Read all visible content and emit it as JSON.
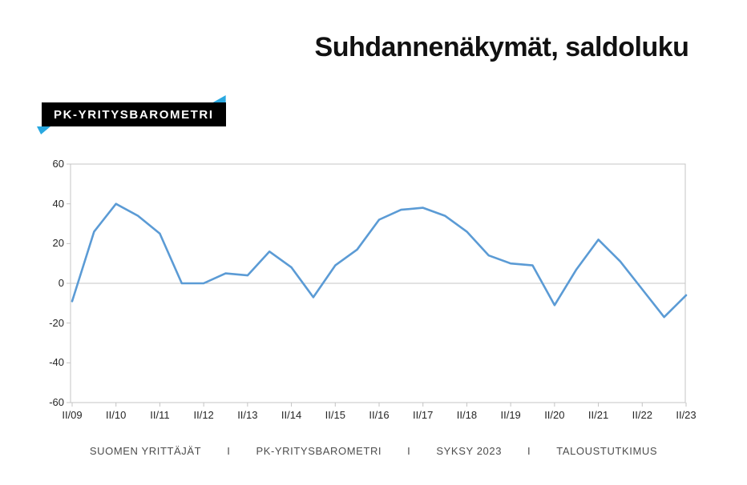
{
  "title": "Suhdannenäkymät, saldoluku",
  "badge": {
    "label": "PK-YRITYSBAROMETRI",
    "bg_color": "#000000",
    "text_color": "#ffffff",
    "accent_color": "#29a8e0"
  },
  "footer": {
    "items": [
      "SUOMEN YRITTÄJÄT",
      "PK-YRITYSBAROMETRI",
      "SYKSY 2023",
      "TALOUSTUTKIMUS"
    ],
    "separator": "I"
  },
  "chart_data": {
    "type": "line",
    "title": "Suhdannenäkymät, saldoluku",
    "x": [
      "II/09",
      "I/10",
      "II/10",
      "I/11",
      "II/11",
      "I/12",
      "II/12",
      "I/13",
      "II/13",
      "I/14",
      "II/14",
      "I/15",
      "II/15",
      "I/16",
      "II/16",
      "I/17",
      "II/17",
      "I/18",
      "II/18",
      "I/19",
      "II/19",
      "I/20",
      "II/20",
      "I/21",
      "II/21",
      "I/22",
      "II/22",
      "I/23",
      "II/23"
    ],
    "values": [
      -9,
      26,
      40,
      34,
      25,
      0,
      0,
      5,
      4,
      16,
      8,
      -7,
      9,
      17,
      32,
      37,
      38,
      34,
      26,
      14,
      10,
      9,
      -11,
      7,
      22,
      11,
      -3,
      -17,
      -6
    ],
    "x_tick_labels": [
      "II/09",
      "II/10",
      "II/11",
      "II/12",
      "II/13",
      "II/14",
      "II/15",
      "II/16",
      "II/17",
      "II/18",
      "II/19",
      "II/20",
      "II/21",
      "II/22",
      "II/23"
    ],
    "ylim": [
      -60,
      60
    ],
    "ytick_step": 20,
    "line_color": "#5b9bd5",
    "axis_color": "#c4c4c4",
    "grid": "zero-line-only",
    "legend": "none"
  }
}
